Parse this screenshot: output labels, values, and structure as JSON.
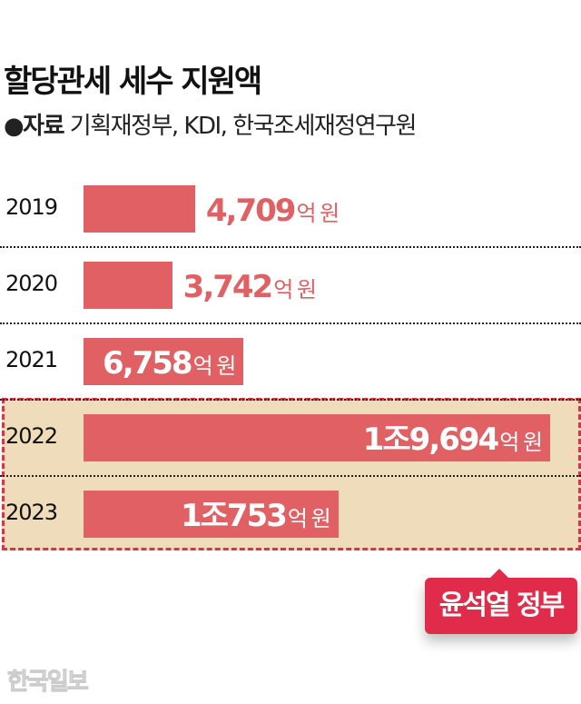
{
  "header": {
    "title": "할당관세 세수 지원액",
    "source_label": "●자료",
    "source_text": "기획재정부, KDI, 한국조세재정연구원"
  },
  "chart_data": {
    "type": "bar",
    "orientation": "horizontal",
    "title": "할당관세 세수 지원액",
    "unit": "억 원",
    "categories": [
      "2019",
      "2020",
      "2021",
      "2022",
      "2023"
    ],
    "values": [
      4709,
      3742,
      6758,
      19694,
      10753
    ],
    "labels": [
      {
        "num": "4,709",
        "unit": "억 원"
      },
      {
        "num": "3,742",
        "unit": "억 원"
      },
      {
        "num": "6,758",
        "unit": "억 원"
      },
      {
        "num": "1조9,694",
        "unit": "억 원"
      },
      {
        "num": "1조753",
        "unit": "억 원"
      }
    ],
    "highlighted": [
      "2022",
      "2023"
    ],
    "highlight_label": "윤석열 정부",
    "colors": {
      "bar": "#e06064",
      "highlight_bg": "#eedcba",
      "highlight_border": "#e0304c",
      "callout": "#e02b4a"
    }
  },
  "watermark": "한국일보"
}
